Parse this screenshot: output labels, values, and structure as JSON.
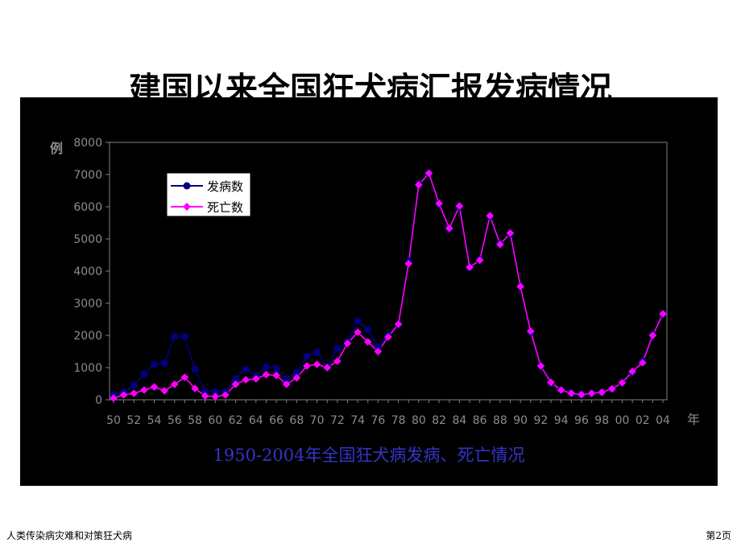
{
  "slide": {
    "title": "建国以来全国狂犬病汇报发病情况",
    "footer_left": "人类传染病灾难和对策狂犬病",
    "footer_right": "第2页"
  },
  "colors": {
    "panel_bg": "#000000",
    "axis": "#7f7f7f",
    "tick_text": "#8c8c8c",
    "caption": "#3434c8",
    "series_cases": "#000080",
    "series_deaths": "#ff00ff"
  },
  "chart_data": {
    "type": "line",
    "title": "",
    "caption": "1950-2004年全国狂犬病发病、死亡情况",
    "ylabel": "例",
    "xlabel": "年",
    "ylim": [
      0,
      8000
    ],
    "yticks": [
      0,
      1000,
      2000,
      3000,
      4000,
      5000,
      6000,
      7000,
      8000
    ],
    "xtick_labels": [
      "50",
      "52",
      "54",
      "56",
      "58",
      "60",
      "62",
      "64",
      "66",
      "68",
      "70",
      "72",
      "74",
      "76",
      "78",
      "80",
      "82",
      "84",
      "86",
      "88",
      "90",
      "92",
      "94",
      "96",
      "98",
      "00",
      "02",
      "04"
    ],
    "grid": false,
    "legend_position": "top-left",
    "x": [
      1950,
      1951,
      1952,
      1953,
      1954,
      1955,
      1956,
      1957,
      1958,
      1959,
      1960,
      1961,
      1962,
      1963,
      1964,
      1965,
      1966,
      1967,
      1968,
      1969,
      1970,
      1971,
      1972,
      1973,
      1974,
      1975,
      1976,
      1977,
      1978,
      1979,
      1980,
      1981,
      1982,
      1983,
      1984,
      1985,
      1986,
      1987,
      1988,
      1989,
      1990,
      1991,
      1992,
      1993,
      1994,
      1995,
      1996,
      1997,
      1998,
      1999,
      2000,
      2001,
      2002,
      2003,
      2004
    ],
    "series": [
      {
        "name": "发病数",
        "marker": "circle",
        "values": [
          150,
          250,
          450,
          800,
          1100,
          1130,
          1970,
          1970,
          950,
          260,
          250,
          250,
          650,
          950,
          750,
          1020,
          980,
          650,
          850,
          1350,
          1480,
          1020,
          1600,
          1800,
          2450,
          2180,
          1650,
          2000,
          2350,
          4300,
          6700,
          7050,
          6100,
          5300,
          6000,
          4100,
          4350,
          5700,
          4850,
          5150,
          3520,
          2100,
          1050,
          520,
          300,
          200,
          160,
          200,
          230,
          330,
          520,
          850,
          1200,
          2020,
          2660
        ]
      },
      {
        "name": "死亡数",
        "marker": "diamond",
        "values": [
          50,
          150,
          200,
          300,
          400,
          280,
          480,
          700,
          350,
          120,
          100,
          150,
          480,
          620,
          650,
          780,
          760,
          480,
          680,
          1050,
          1100,
          1000,
          1200,
          1750,
          2100,
          1800,
          1500,
          1950,
          2350,
          4230,
          6680,
          7040,
          6100,
          5330,
          6020,
          4120,
          4340,
          5720,
          4830,
          5180,
          3520,
          2130,
          1050,
          540,
          300,
          200,
          160,
          200,
          230,
          340,
          530,
          880,
          1150,
          2000,
          2670
        ]
      }
    ]
  }
}
